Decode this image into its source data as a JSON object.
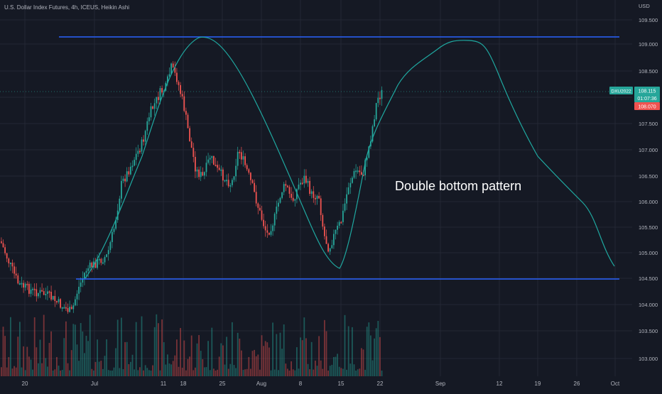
{
  "header": {
    "symbol_title": "U.S. Dollar Index Futures, 4h, ICEUS, Heikin Ashi"
  },
  "y_axis": {
    "currency": "USD",
    "ticks": [
      "109.500",
      "109.000",
      "108.500",
      "108.000",
      "107.500",
      "107.000",
      "106.500",
      "106.000",
      "105.500",
      "105.000",
      "104.500",
      "104.000",
      "103.500",
      "103.000"
    ]
  },
  "x_axis": {
    "ticks": [
      "20",
      "Jul",
      "11",
      "18",
      "25",
      "Aug",
      "8",
      "15",
      "22",
      "Sep",
      "12",
      "19",
      "26",
      "Oct"
    ]
  },
  "price_badge": {
    "symbol": "DXU2022",
    "price": "108.115",
    "countdown": "01:07:36",
    "second_price": "108.070"
  },
  "annotation": {
    "text": "Double bottom pattern"
  },
  "colors": {
    "background": "#151924",
    "grid": "#232734",
    "up_candle": "#26a69a",
    "down_candle": "#ef5350",
    "level_line": "#2962ff",
    "projection_curve": "#1fa8a0",
    "text": "#b2b5be"
  },
  "chart_data": {
    "type": "candlestick",
    "title": "U.S. Dollar Index Futures, 4h, ICEUS, Heikin Ashi",
    "y_range": [
      102.7,
      109.8
    ],
    "resistance_level": 109.15,
    "support_level": 104.5,
    "close_path": [
      [
        "Jun 15",
        105.3
      ],
      [
        "Jun 17",
        104.8
      ],
      [
        "Jun 20",
        104.4
      ],
      [
        "Jun 23",
        104.1
      ],
      [
        "Jun 27",
        103.7
      ],
      [
        "Jun 29",
        104.4
      ],
      [
        "Jul 1",
        105.1
      ],
      [
        "Jul 4",
        105.0
      ],
      [
        "Jul 6",
        106.4
      ],
      [
        "Jul 8",
        107.0
      ],
      [
        "Jul 11",
        108.0
      ],
      [
        "Jul 13",
        108.1
      ],
      [
        "Jul 14",
        108.6
      ],
      [
        "Jul 15",
        108.1
      ],
      [
        "Jul 17",
        107.3
      ],
      [
        "Jul 19",
        106.6
      ],
      [
        "Jul 21",
        106.9
      ],
      [
        "Jul 23",
        106.4
      ],
      [
        "Jul 25",
        106.9
      ],
      [
        "Jul 27",
        106.3
      ],
      [
        "Jul 29",
        105.2
      ],
      [
        "Aug 1",
        105.4
      ],
      [
        "Aug 2",
        106.4
      ],
      [
        "Aug 4",
        106.1
      ],
      [
        "Aug 5",
        106.5
      ],
      [
        "Aug 8",
        106.3
      ],
      [
        "Aug 10",
        104.9
      ],
      [
        "Aug 11",
        104.8
      ],
      [
        "Aug 13",
        105.6
      ],
      [
        "Aug 15",
        106.6
      ],
      [
        "Aug 17",
        106.7
      ],
      [
        "Aug 19",
        107.5
      ],
      [
        "Aug 21",
        108.1
      ]
    ],
    "projection_curve": [
      [
        "Jul 1",
        104.7
      ],
      [
        "Jul 11",
        107.3
      ],
      [
        "Jul 18",
        109.1
      ],
      [
        "Jul 21",
        109.15
      ],
      [
        "Aug 1",
        107.5
      ],
      [
        "Aug 10",
        105.3
      ],
      [
        "Aug 13",
        104.8
      ],
      [
        "Aug 19",
        106.6
      ],
      [
        "Aug 22",
        107.8
      ],
      [
        "Aug 29",
        108.7
      ],
      [
        "Sep 5",
        109.1
      ],
      [
        "Sep 8",
        109.05
      ],
      [
        "Sep 12",
        108.0
      ],
      [
        "Sep 19",
        106.9
      ],
      [
        "Sep 26",
        105.9
      ],
      [
        "Sep 30",
        104.8
      ]
    ]
  }
}
